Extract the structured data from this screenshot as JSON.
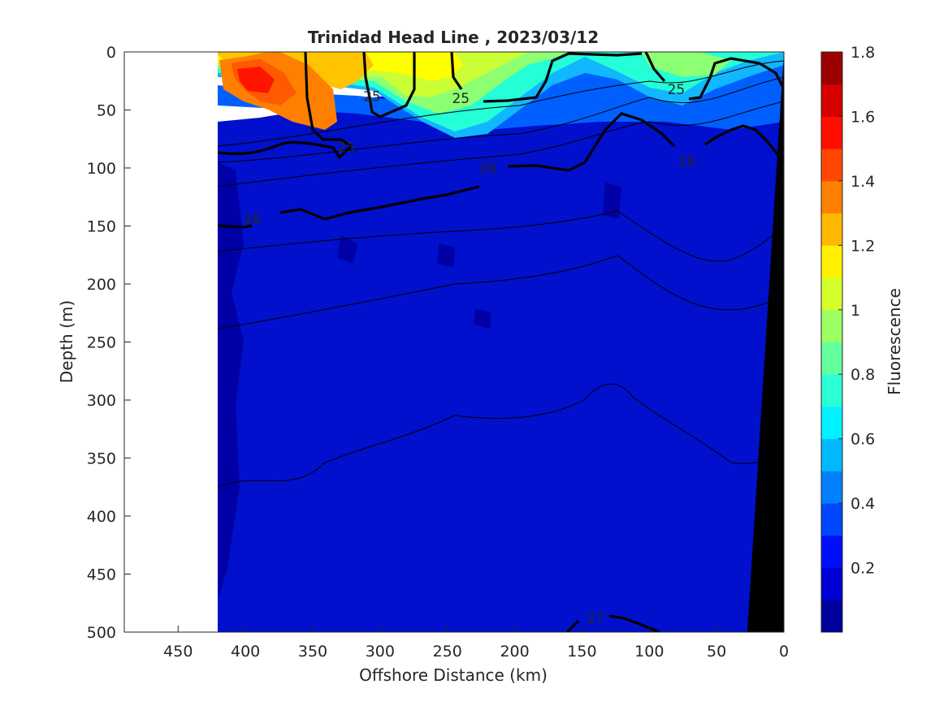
{
  "chart_data": {
    "type": "heatmap",
    "title": "Trinidad Head Line , 2023/03/12",
    "xlabel": "Offshore Distance (km)",
    "ylabel": "Depth (m)",
    "xlim": [
      490,
      0
    ],
    "ylim": [
      0,
      500
    ],
    "x_reversed": true,
    "y_reversed": true,
    "x_ticks": [
      "450",
      "400",
      "350",
      "300",
      "250",
      "200",
      "150",
      "100",
      "50",
      "0"
    ],
    "y_ticks": [
      "0",
      "50",
      "100",
      "150",
      "200",
      "250",
      "300",
      "350",
      "400",
      "450",
      "500"
    ],
    "data_extent_km": [
      420,
      0
    ],
    "colorbar": {
      "label": "Fluorescence",
      "range": [
        0,
        1.8
      ],
      "ticks": [
        "1.8",
        "1.6",
        "1.4",
        "1.2",
        "1",
        "0.8",
        "0.6",
        "0.4",
        "0.2"
      ],
      "colormap": "jet",
      "levels": 18
    },
    "contour_labels": [
      {
        "text": "25",
        "x": 325,
        "y": 82
      },
      {
        "text": "25",
        "x": 306,
        "y": 38
      },
      {
        "text": "25",
        "x": 240,
        "y": 40
      },
      {
        "text": "25",
        "x": 80,
        "y": 32
      },
      {
        "text": "26",
        "x": 395,
        "y": 144
      },
      {
        "text": "26",
        "x": 220,
        "y": 100
      },
      {
        "text": "26",
        "x": 72,
        "y": 94
      },
      {
        "text": "27",
        "x": 140,
        "y": 488
      }
    ],
    "bathymetry_color": "#000000"
  }
}
